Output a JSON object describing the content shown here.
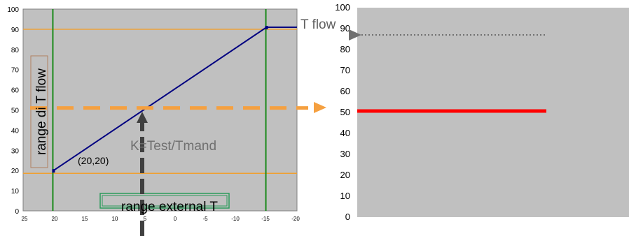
{
  "colors": {
    "plot_background": "#c0c0c0",
    "curve": "#000080",
    "limit_lines": "#f0a030",
    "vertical_lines": "#1a8a1a",
    "dashed_projection": "#f5a040",
    "result_line": "#ff0000",
    "arrow": "#404040",
    "dotted_arrow": "#707070"
  },
  "left_chart": {
    "x_ticks": [
      "25",
      "20",
      "15",
      "10",
      "5",
      "0",
      "-5",
      "-10",
      "-15",
      "-20"
    ],
    "y_ticks": [
      "0",
      "10",
      "20",
      "30",
      "40",
      "50",
      "60",
      "70",
      "80",
      "90",
      "100"
    ],
    "x_range": [
      25,
      -20
    ],
    "y_range": [
      0,
      100
    ],
    "curve_points": [
      [
        20,
        20
      ],
      [
        -15,
        91
      ],
      [
        -20,
        91
      ]
    ],
    "operating_point": [
      5,
      51
    ],
    "lower_limit": 20,
    "upper_limit": 90,
    "vertical_limits": [
      20,
      -15
    ],
    "labels": {
      "t_flow": "T flow",
      "range_t_flow": "range di T flow",
      "point": "(20,20)",
      "k_formula": "K=Test/Tmand",
      "range_external": "range external T"
    }
  },
  "right_chart": {
    "y_ticks": [
      "0",
      "10",
      "20",
      "30",
      "40",
      "50",
      "60",
      "70",
      "80",
      "90",
      "100"
    ],
    "y_range": [
      0,
      100
    ],
    "result_level": 51,
    "dotted_arrow_level": 87
  }
}
